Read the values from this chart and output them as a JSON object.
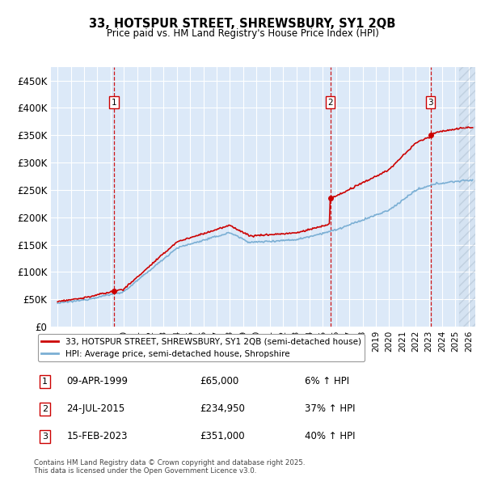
{
  "title": "33, HOTSPUR STREET, SHREWSBURY, SY1 2QB",
  "subtitle": "Price paid vs. HM Land Registry's House Price Index (HPI)",
  "ylim": [
    0,
    475000
  ],
  "yticks": [
    0,
    50000,
    100000,
    150000,
    200000,
    250000,
    300000,
    350000,
    400000,
    450000
  ],
  "ytick_labels": [
    "£0",
    "£50K",
    "£100K",
    "£150K",
    "£200K",
    "£250K",
    "£300K",
    "£350K",
    "£400K",
    "£450K"
  ],
  "background_color": "#dce9f8",
  "legend_label_red": "33, HOTSPUR STREET, SHREWSBURY, SY1 2QB (semi-detached house)",
  "legend_label_blue": "HPI: Average price, semi-detached house, Shropshire",
  "sale1_date": "09-APR-1999",
  "sale1_price": 65000,
  "sale1_pct": "6% ↑ HPI",
  "sale2_date": "24-JUL-2015",
  "sale2_price": 234950,
  "sale2_pct": "37% ↑ HPI",
  "sale3_date": "15-FEB-2023",
  "sale3_price": 351000,
  "sale3_pct": "40% ↑ HPI",
  "footer": "Contains HM Land Registry data © Crown copyright and database right 2025.\nThis data is licensed under the Open Government Licence v3.0.",
  "red_line_color": "#cc0000",
  "blue_line_color": "#7bafd4",
  "vline_color": "#cc0000",
  "sale_marker_color": "#cc0000",
  "sale1_year": 1999.27,
  "sale2_year": 2015.56,
  "sale3_year": 2023.12,
  "xmin": 1994.5,
  "xmax": 2026.5,
  "hatch_start": 2025.3
}
